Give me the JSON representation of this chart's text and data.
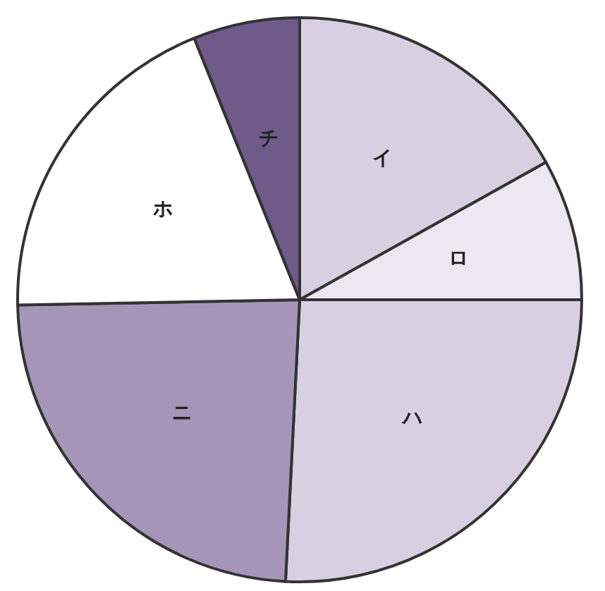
{
  "chart_data": {
    "type": "pie",
    "categories": [
      "イ",
      "ロ",
      "ハ",
      "ニ",
      "ホ",
      "チ"
    ],
    "values": [
      16.9,
      8.1,
      25.8,
      23.9,
      19.2,
      6.1
    ],
    "colors": [
      "#d8d0e2",
      "#ece8f1",
      "#d8d0e2",
      "#a596b9",
      "#ffffff",
      "#6f5a8a"
    ],
    "legend": false
  }
}
